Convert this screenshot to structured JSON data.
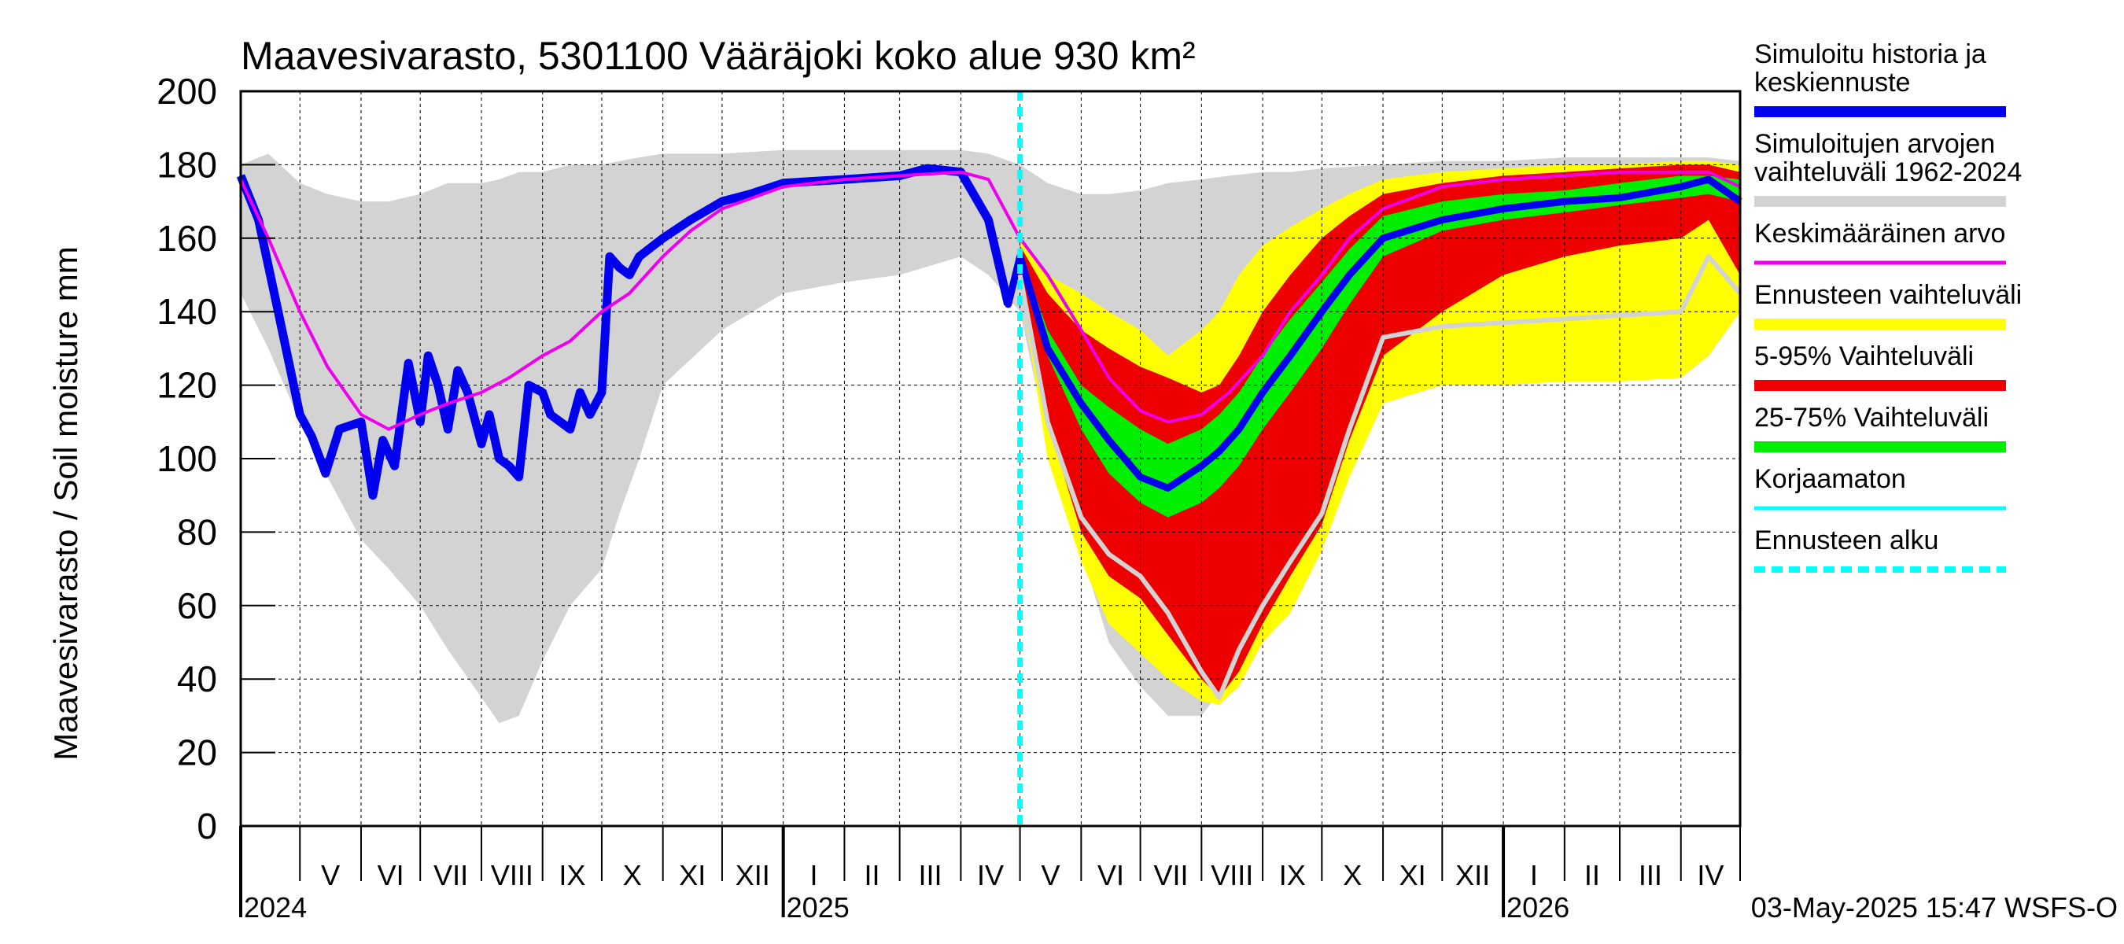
{
  "chart_data": {
    "type": "area",
    "title": "Maavesivarasto, 5301100 Vääräjoki koko alue 930 km²",
    "ylabel": "Maavesivarasto / Soil moisture   mm",
    "ylim": [
      0,
      200
    ],
    "yticks": [
      0,
      20,
      40,
      60,
      80,
      100,
      120,
      140,
      160,
      180,
      200
    ],
    "xlim": [
      "2024-04-01",
      "2026-05-01"
    ],
    "grid": true,
    "legend_position": "right",
    "month_labels": [
      {
        "date": "2024-05-01",
        "label": "V"
      },
      {
        "date": "2024-06-01",
        "label": "VI"
      },
      {
        "date": "2024-07-01",
        "label": "VII"
      },
      {
        "date": "2024-08-01",
        "label": "VIII"
      },
      {
        "date": "2024-09-01",
        "label": "IX"
      },
      {
        "date": "2024-10-01",
        "label": "X"
      },
      {
        "date": "2024-11-01",
        "label": "XI"
      },
      {
        "date": "2024-12-01",
        "label": "XII"
      },
      {
        "date": "2025-01-01",
        "label": "I"
      },
      {
        "date": "2025-02-01",
        "label": "II"
      },
      {
        "date": "2025-03-01",
        "label": "III"
      },
      {
        "date": "2025-04-01",
        "label": "IV"
      },
      {
        "date": "2025-05-01",
        "label": "V"
      },
      {
        "date": "2025-06-01",
        "label": "VI"
      },
      {
        "date": "2025-07-01",
        "label": "VII"
      },
      {
        "date": "2025-08-01",
        "label": "VIII"
      },
      {
        "date": "2025-09-01",
        "label": "IX"
      },
      {
        "date": "2025-10-01",
        "label": "X"
      },
      {
        "date": "2025-11-01",
        "label": "XI"
      },
      {
        "date": "2025-12-01",
        "label": "XII"
      },
      {
        "date": "2026-01-01",
        "label": "I"
      },
      {
        "date": "2026-02-01",
        "label": "II"
      },
      {
        "date": "2026-03-01",
        "label": "III"
      },
      {
        "date": "2026-04-01",
        "label": "IV"
      }
    ],
    "year_labels": [
      {
        "date": "2024-04-01",
        "label": "2024"
      },
      {
        "date": "2025-01-01",
        "label": "2025"
      },
      {
        "date": "2026-01-01",
        "label": "2026"
      }
    ],
    "forecast_start": "2025-05-01",
    "timestamp": "03-May-2025 15:47 WSFS-O",
    "legend": [
      {
        "label": "Simuloitu historia ja\nkeskiennuste",
        "color": "#0000ee",
        "style": "thick"
      },
      {
        "label": "Simuloitujen arvojen\nvaihteluväli 1962-2024",
        "color": "#d3d3d3",
        "style": "thick"
      },
      {
        "label": "Keskimääräinen arvo",
        "color": "#ee00ee",
        "style": "thin"
      },
      {
        "label": "Ennusteen vaihteluväli",
        "color": "#ffff00",
        "style": "thick"
      },
      {
        "label": "5-95% Vaihteluväli",
        "color": "#ee0000",
        "style": "thick"
      },
      {
        "label": "25-75% Vaihteluväli",
        "color": "#00ee00",
        "style": "thick"
      },
      {
        "label": "Korjaamaton",
        "color": "#00ffff",
        "style": "thin"
      },
      {
        "label": "Ennusteen alku",
        "color": "#00ffff",
        "style": "dashed"
      }
    ],
    "series": [
      {
        "name": "Simuloitujen arvojen vaihteluväli 1962-2024",
        "kind": "band",
        "color": "#d3d3d3",
        "x": [
          "2024-04-01",
          "2024-04-15",
          "2024-05-01",
          "2024-05-15",
          "2024-06-01",
          "2024-06-15",
          "2024-07-01",
          "2024-07-15",
          "2024-08-01",
          "2024-08-10",
          "2024-08-20",
          "2024-09-01",
          "2024-09-15",
          "2024-10-01",
          "2024-10-10",
          "2024-10-20",
          "2024-11-01",
          "2024-12-01",
          "2025-01-01",
          "2025-02-01",
          "2025-03-01",
          "2025-04-01",
          "2025-04-15",
          "2025-05-01",
          "2025-05-15",
          "2025-06-01",
          "2025-06-15",
          "2025-07-01",
          "2025-07-15",
          "2025-08-01",
          "2025-08-15",
          "2025-09-01",
          "2025-09-15",
          "2025-10-01",
          "2025-11-01",
          "2025-12-01",
          "2026-01-01",
          "2026-02-01",
          "2026-03-01",
          "2026-04-01",
          "2026-04-15",
          "2026-05-01"
        ],
        "lower": [
          145,
          130,
          110,
          95,
          78,
          70,
          60,
          48,
          35,
          28,
          30,
          45,
          60,
          70,
          85,
          100,
          120,
          135,
          145,
          148,
          150,
          155,
          150,
          140,
          105,
          75,
          50,
          38,
          30,
          30,
          40,
          55,
          75,
          100,
          120,
          130,
          135,
          138,
          140,
          145,
          150,
          148
        ],
        "upper": [
          180,
          183,
          175,
          172,
          170,
          170,
          172,
          175,
          175,
          176,
          178,
          178,
          180,
          180,
          181,
          182,
          183,
          183,
          184,
          184,
          184,
          184,
          183,
          180,
          175,
          172,
          172,
          173,
          175,
          176,
          177,
          178,
          178,
          179,
          180,
          181,
          181,
          182,
          182,
          182,
          182,
          181
        ]
      },
      {
        "name": "Ennusteen vaihteluväli",
        "kind": "band",
        "color": "#ffff00",
        "x": [
          "2025-05-01",
          "2025-05-15",
          "2025-06-01",
          "2025-06-15",
          "2025-07-01",
          "2025-07-15",
          "2025-08-01",
          "2025-08-10",
          "2025-08-20",
          "2025-09-01",
          "2025-09-15",
          "2025-10-01",
          "2025-10-15",
          "2025-11-01",
          "2025-12-01",
          "2026-01-01",
          "2026-02-01",
          "2026-03-01",
          "2026-04-01",
          "2026-04-15",
          "2026-05-01"
        ],
        "lower": [
          148,
          100,
          72,
          55,
          47,
          40,
          34,
          33,
          38,
          50,
          58,
          75,
          95,
          115,
          120,
          120,
          121,
          121,
          122,
          128,
          140
        ],
        "upper": [
          160,
          150,
          145,
          140,
          135,
          128,
          135,
          140,
          150,
          158,
          163,
          168,
          172,
          176,
          178,
          179,
          180,
          180,
          181,
          181,
          180
        ]
      },
      {
        "name": "5-95% Vaihteluväli",
        "kind": "band",
        "color": "#ee0000",
        "x": [
          "2025-05-01",
          "2025-05-15",
          "2025-06-01",
          "2025-06-15",
          "2025-07-01",
          "2025-07-15",
          "2025-08-01",
          "2025-08-10",
          "2025-08-20",
          "2025-09-01",
          "2025-09-15",
          "2025-10-01",
          "2025-10-15",
          "2025-11-01",
          "2025-12-01",
          "2026-01-01",
          "2026-02-01",
          "2026-03-01",
          "2026-04-01",
          "2026-04-15",
          "2026-05-01"
        ],
        "lower": [
          150,
          110,
          80,
          68,
          62,
          52,
          40,
          35,
          42,
          55,
          68,
          82,
          105,
          128,
          140,
          150,
          155,
          158,
          160,
          165,
          150
        ],
        "upper": [
          158,
          145,
          135,
          130,
          125,
          122,
          118,
          120,
          128,
          140,
          150,
          160,
          166,
          172,
          175,
          177,
          178,
          179,
          180,
          180,
          178
        ]
      },
      {
        "name": "25-75% Vaihteluväli",
        "kind": "band",
        "color": "#00ee00",
        "x": [
          "2025-05-01",
          "2025-05-15",
          "2025-06-01",
          "2025-06-15",
          "2025-07-01",
          "2025-07-15",
          "2025-08-01",
          "2025-08-10",
          "2025-08-20",
          "2025-09-01",
          "2025-09-15",
          "2025-10-01",
          "2025-10-15",
          "2025-11-01",
          "2025-12-01",
          "2026-01-01",
          "2026-02-01",
          "2026-03-01",
          "2026-04-01",
          "2026-04-15",
          "2026-05-01"
        ],
        "lower": [
          154,
          128,
          108,
          96,
          88,
          84,
          88,
          92,
          98,
          108,
          118,
          130,
          142,
          155,
          162,
          165,
          167,
          169,
          171,
          172,
          170
        ],
        "upper": [
          156,
          135,
          120,
          114,
          108,
          104,
          108,
          112,
          118,
          128,
          138,
          148,
          157,
          166,
          170,
          172,
          173,
          175,
          177,
          177,
          176
        ]
      },
      {
        "name": "Korjaamaton",
        "kind": "line",
        "color": "#00ffff",
        "x": [
          "2024-04-01",
          "2024-04-10",
          "2024-04-20",
          "2024-05-01",
          "2024-05-07",
          "2024-05-14",
          "2024-05-21",
          "2024-06-01",
          "2024-06-07",
          "2024-06-12",
          "2024-06-18",
          "2024-06-25",
          "2024-07-01",
          "2024-07-05",
          "2024-07-10",
          "2024-07-15",
          "2024-07-20",
          "2024-07-25",
          "2024-08-01",
          "2024-08-05",
          "2024-08-10",
          "2024-08-15",
          "2024-08-20",
          "2024-08-25",
          "2024-09-01",
          "2024-09-05",
          "2024-09-10",
          "2024-09-15",
          "2024-09-20",
          "2024-09-25",
          "2024-10-01",
          "2024-10-05",
          "2024-10-10",
          "2024-10-15",
          "2024-10-20",
          "2024-11-01",
          "2024-11-15",
          "2024-12-01",
          "2024-12-15",
          "2025-01-01",
          "2025-02-01",
          "2025-03-01",
          "2025-03-15",
          "2025-04-01",
          "2025-04-15",
          "2025-04-25"
        ],
        "y": [
          177,
          165,
          140,
          112,
          106,
          96,
          108,
          110,
          90,
          105,
          98,
          126,
          110,
          128,
          120,
          108,
          124,
          118,
          104,
          112,
          100,
          98,
          95,
          120,
          118,
          112,
          110,
          108,
          118,
          112,
          118,
          155,
          152,
          150,
          155,
          160,
          165,
          170,
          172,
          175,
          176,
          177,
          179,
          178,
          165,
          142
        ]
      },
      {
        "name": "Simuloitu historia ja keskiennuste",
        "kind": "line",
        "color": "#0000ee",
        "x": [
          "2024-04-01",
          "2024-04-10",
          "2024-04-20",
          "2024-05-01",
          "2024-05-07",
          "2024-05-14",
          "2024-05-21",
          "2024-06-01",
          "2024-06-07",
          "2024-06-12",
          "2024-06-18",
          "2024-06-25",
          "2024-07-01",
          "2024-07-05",
          "2024-07-10",
          "2024-07-15",
          "2024-07-20",
          "2024-07-25",
          "2024-08-01",
          "2024-08-05",
          "2024-08-10",
          "2024-08-15",
          "2024-08-20",
          "2024-08-25",
          "2024-09-01",
          "2024-09-05",
          "2024-09-10",
          "2024-09-15",
          "2024-09-20",
          "2024-09-25",
          "2024-10-01",
          "2024-10-05",
          "2024-10-10",
          "2024-10-15",
          "2024-10-20",
          "2024-11-01",
          "2024-11-15",
          "2024-12-01",
          "2024-12-15",
          "2025-01-01",
          "2025-02-01",
          "2025-03-01",
          "2025-03-15",
          "2025-04-01",
          "2025-04-15",
          "2025-04-25",
          "2025-05-01",
          "2025-05-15",
          "2025-06-01",
          "2025-06-15",
          "2025-07-01",
          "2025-07-15",
          "2025-08-01",
          "2025-08-10",
          "2025-08-20",
          "2025-09-01",
          "2025-09-15",
          "2025-10-01",
          "2025-10-15",
          "2025-11-01",
          "2025-12-01",
          "2026-01-01",
          "2026-02-01",
          "2026-03-01",
          "2026-04-01",
          "2026-04-15",
          "2026-05-01"
        ],
        "y": [
          177,
          165,
          140,
          112,
          106,
          96,
          108,
          110,
          90,
          105,
          98,
          126,
          110,
          128,
          120,
          108,
          124,
          118,
          104,
          112,
          100,
          98,
          95,
          120,
          118,
          112,
          110,
          108,
          118,
          112,
          118,
          155,
          152,
          150,
          155,
          160,
          165,
          170,
          172,
          175,
          176,
          177,
          179,
          178,
          165,
          142,
          155,
          130,
          115,
          105,
          95,
          92,
          98,
          102,
          108,
          118,
          128,
          140,
          150,
          160,
          165,
          168,
          170,
          171,
          174,
          176,
          170
        ]
      },
      {
        "name": "Keskimääräinen arvo",
        "kind": "line",
        "color": "#ee00ee",
        "x": [
          "2024-04-01",
          "2024-04-15",
          "2024-05-01",
          "2024-05-15",
          "2024-06-01",
          "2024-06-15",
          "2024-07-01",
          "2024-07-15",
          "2024-08-01",
          "2024-08-15",
          "2024-09-01",
          "2024-09-15",
          "2024-10-01",
          "2024-10-15",
          "2024-11-01",
          "2024-11-15",
          "2024-12-01",
          "2025-01-01",
          "2025-02-01",
          "2025-03-01",
          "2025-04-01",
          "2025-04-15",
          "2025-05-01",
          "2025-05-15",
          "2025-06-01",
          "2025-06-15",
          "2025-07-01",
          "2025-07-15",
          "2025-08-01",
          "2025-08-15",
          "2025-09-01",
          "2025-09-15",
          "2025-10-01",
          "2025-10-15",
          "2025-11-01",
          "2025-12-01",
          "2026-01-01",
          "2026-02-01",
          "2026-03-01",
          "2026-04-01",
          "2026-04-15",
          "2026-05-01"
        ],
        "y": [
          176,
          160,
          140,
          125,
          112,
          108,
          112,
          115,
          118,
          122,
          128,
          132,
          140,
          145,
          155,
          162,
          168,
          174,
          176,
          177,
          178,
          176,
          160,
          150,
          135,
          122,
          113,
          110,
          112,
          118,
          128,
          140,
          150,
          160,
          168,
          174,
          176,
          177,
          178,
          178,
          178,
          174
        ]
      },
      {
        "name": "Simuloitujen arvojen vaihteluväli 1962-2024 (forecast minimum)",
        "kind": "line",
        "color": "#d3d3d3",
        "x": [
          "2025-05-01",
          "2025-05-15",
          "2025-06-01",
          "2025-06-15",
          "2025-07-01",
          "2025-07-15",
          "2025-08-01",
          "2025-08-10",
          "2025-08-20",
          "2025-09-01",
          "2025-09-15",
          "2025-10-01",
          "2025-10-15",
          "2025-11-01",
          "2025-12-01",
          "2026-01-01",
          "2026-02-01",
          "2026-03-01",
          "2026-04-01",
          "2026-04-15",
          "2026-05-01"
        ],
        "y": [
          150,
          110,
          84,
          74,
          68,
          58,
          42,
          35,
          48,
          60,
          72,
          85,
          108,
          133,
          136,
          137,
          138,
          139,
          140,
          155,
          145
        ]
      }
    ]
  }
}
